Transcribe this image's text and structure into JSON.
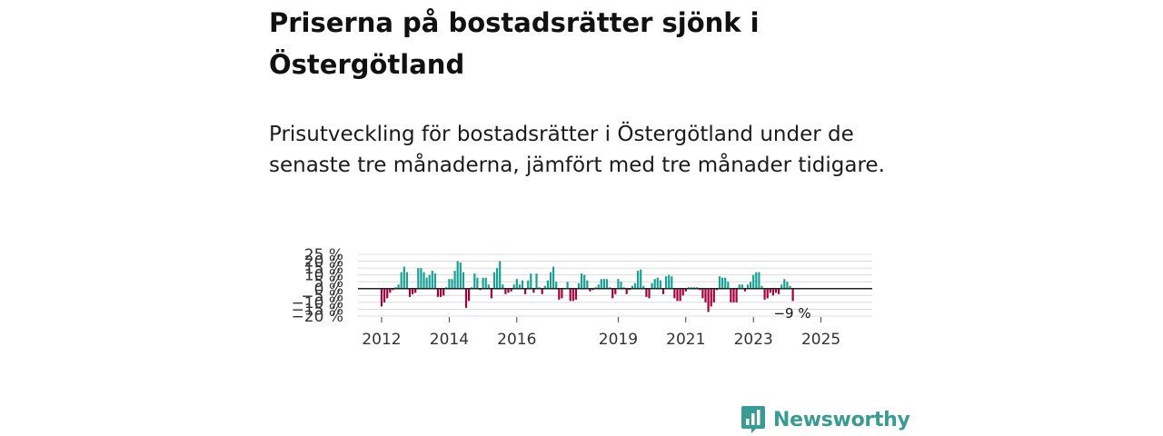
{
  "title": "Priserna på bostadsrätter sjönk i Östergötland",
  "subtitle": "Prisutveckling för bostadsrätter i Östergötland under de senaste tre månaderna, jämfört med tre månader tidigare.",
  "brand": {
    "name": "Newsworthy"
  },
  "colors": {
    "positive": "#1aa195",
    "negative": "#a3003d",
    "grid": "#dcdcdc",
    "zero": "#222222"
  },
  "chart_data": {
    "type": "bar",
    "title": "Priserna på bostadsrätter sjönk i Östergötland",
    "ylabel": "",
    "xlabel": "",
    "unit": "%",
    "ylim": [
      -20,
      25
    ],
    "yticks": [
      25,
      20,
      15,
      10,
      5,
      0,
      -5,
      -10,
      -15,
      -20
    ],
    "ytick_labels": [
      "25 %",
      "20 %",
      "15 %",
      "10 %",
      "5 %",
      "0 %",
      "−5 %",
      "−10 %",
      "−15 %",
      "−20 %"
    ],
    "x_tick_labels": [
      {
        "label": "2012",
        "index": 0
      },
      {
        "label": "2014",
        "index": 24
      },
      {
        "label": "2016",
        "index": 48
      },
      {
        "label": "2019",
        "index": 84
      },
      {
        "label": "2021",
        "index": 108
      },
      {
        "label": "2023",
        "index": 132
      },
      {
        "label": "2025",
        "index": 156
      }
    ],
    "start": "2012-01",
    "frequency": "monthly",
    "last_value_label": "−9 %",
    "values": [
      -13,
      -10,
      -7,
      -3,
      -1,
      1,
      3,
      12,
      16,
      12,
      -6,
      -4,
      -3,
      15,
      15,
      12,
      8,
      10,
      13,
      11,
      -6,
      -6,
      -5,
      1,
      7,
      7,
      13,
      20,
      19,
      12,
      -14,
      -9,
      1,
      11,
      8,
      -1,
      8,
      8,
      3,
      -7,
      12,
      15,
      20,
      3,
      -4,
      -3,
      -2,
      3,
      7,
      3,
      6,
      -4,
      6,
      11,
      -3,
      11,
      1,
      -4,
      2,
      6,
      12,
      16,
      5,
      -8,
      -7,
      0,
      5,
      -9,
      -9,
      -8,
      4,
      11,
      10,
      6,
      -2,
      -1,
      1,
      3,
      7,
      7,
      7,
      1,
      -7,
      -4,
      7,
      5,
      1,
      -4,
      -1,
      2,
      4,
      13,
      14,
      2,
      -6,
      -7,
      4,
      7,
      8,
      6,
      -4,
      9,
      10,
      9,
      -7,
      -9,
      -9,
      -5,
      -2,
      1,
      1,
      1,
      1,
      -1,
      -7,
      -10,
      -17,
      -13,
      -10,
      -1,
      9,
      8,
      8,
      5,
      -10,
      -10,
      -10,
      3,
      3,
      -2,
      3,
      5,
      10,
      12,
      12,
      2,
      -8,
      -7,
      -3,
      -5,
      -3,
      -4,
      3,
      7,
      5,
      2,
      -9
    ]
  }
}
